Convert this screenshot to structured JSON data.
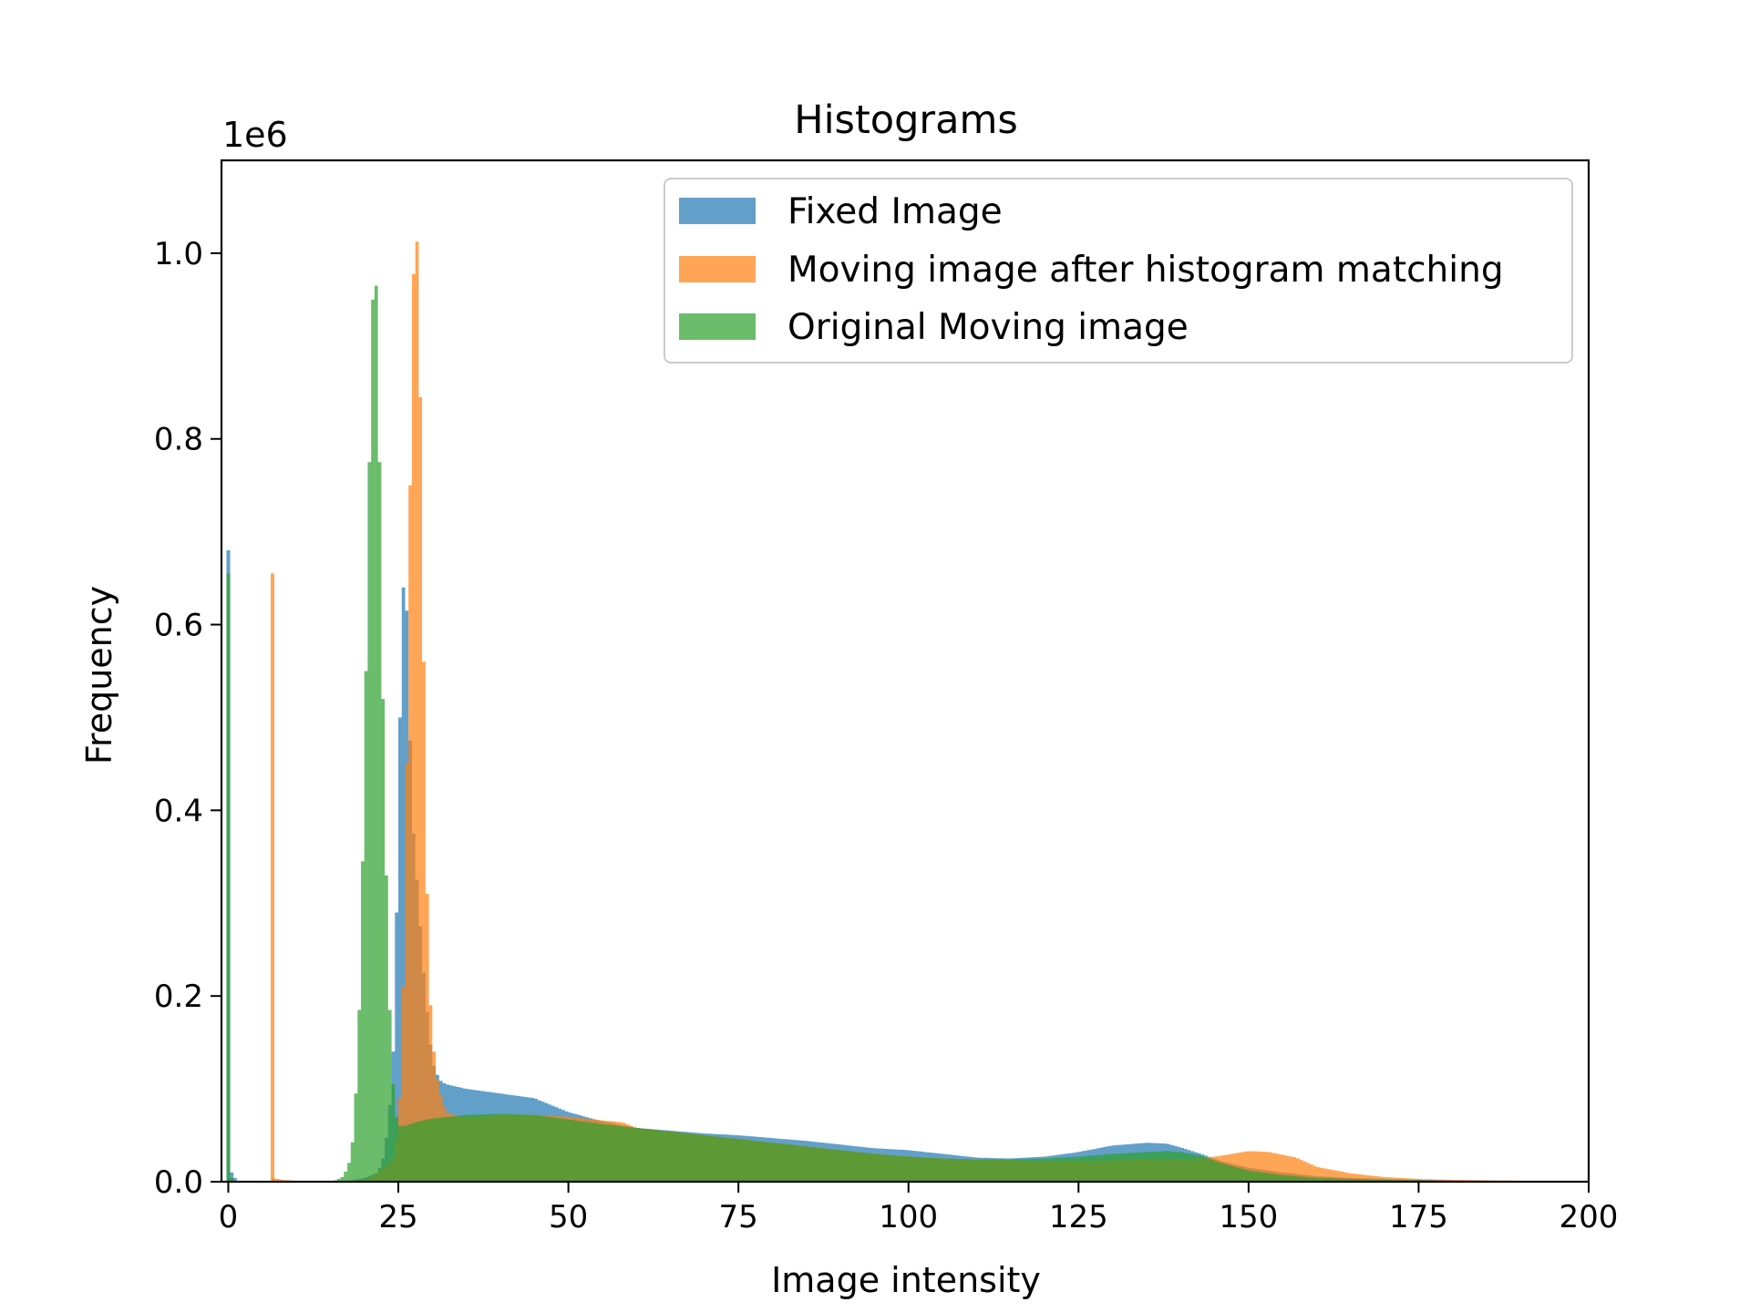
{
  "chart_data": {
    "type": "histogram",
    "title": "Histograms",
    "xlabel": "Image intensity",
    "ylabel": "Frequency",
    "offset_text": "1e6",
    "xlim": [
      -1,
      200
    ],
    "ylim": [
      0,
      1.1
    ],
    "x_ticks": [
      0,
      25,
      50,
      75,
      100,
      125,
      150,
      175,
      200
    ],
    "x_tick_labels": [
      "0",
      "25",
      "50",
      "75",
      "100",
      "125",
      "150",
      "175",
      "200"
    ],
    "y_ticks": [
      0,
      0.2,
      0.4,
      0.6,
      0.8,
      1.0
    ],
    "y_tick_labels": [
      "0.0",
      "0.2",
      "0.4",
      "0.6",
      "0.8",
      "1.0"
    ],
    "bar_opacity": 0.7,
    "grid": false,
    "legend_position": "top-right",
    "series": [
      {
        "name": "Fixed Image",
        "color": "#1f77b4",
        "spikes": [
          [
            0,
            0.68
          ],
          [
            0.5,
            0.01
          ],
          [
            1,
            0.004
          ]
        ],
        "profile": [
          [
            17,
            0
          ],
          [
            20,
            0.004
          ],
          [
            22,
            0.01
          ],
          [
            23,
            0.03
          ],
          [
            24,
            0.1
          ],
          [
            24.5,
            0.18
          ],
          [
            25,
            0.4
          ],
          [
            25.5,
            0.6
          ],
          [
            26,
            0.68
          ],
          [
            26.5,
            0.55
          ],
          [
            27,
            0.4
          ],
          [
            28,
            0.3
          ],
          [
            29,
            0.2
          ],
          [
            30,
            0.13
          ],
          [
            31,
            0.11
          ],
          [
            32,
            0.105
          ],
          [
            35,
            0.1
          ],
          [
            40,
            0.095
          ],
          [
            45,
            0.09
          ],
          [
            50,
            0.075
          ],
          [
            55,
            0.065
          ],
          [
            60,
            0.058
          ],
          [
            65,
            0.055
          ],
          [
            70,
            0.052
          ],
          [
            75,
            0.05
          ],
          [
            80,
            0.047
          ],
          [
            85,
            0.044
          ],
          [
            90,
            0.04
          ],
          [
            95,
            0.036
          ],
          [
            100,
            0.034
          ],
          [
            105,
            0.03
          ],
          [
            110,
            0.026
          ],
          [
            115,
            0.025
          ],
          [
            120,
            0.027
          ],
          [
            125,
            0.032
          ],
          [
            130,
            0.039
          ],
          [
            135,
            0.042
          ],
          [
            138,
            0.041
          ],
          [
            140,
            0.037
          ],
          [
            143,
            0.03
          ],
          [
            146,
            0.022
          ],
          [
            150,
            0.015
          ],
          [
            155,
            0.01
          ],
          [
            160,
            0.006
          ],
          [
            165,
            0.004
          ],
          [
            175,
            0.002
          ],
          [
            185,
            0.001
          ],
          [
            192,
            0.001
          ],
          [
            193,
            0
          ]
        ]
      },
      {
        "name": "Moving image after histogram matching",
        "color": "#ff7f0e",
        "spikes": [
          [
            6.5,
            0.655
          ]
        ],
        "profile": [
          [
            6.5,
            0.004
          ],
          [
            8,
            0.002
          ],
          [
            10,
            0.001
          ],
          [
            20,
            0.001
          ],
          [
            24,
            0.02
          ],
          [
            24.5,
            0.03
          ],
          [
            25,
            0.06
          ],
          [
            25.5,
            0.12
          ],
          [
            26,
            0.3
          ],
          [
            26.5,
            0.6
          ],
          [
            27,
            0.9
          ],
          [
            27.5,
            1.055
          ],
          [
            28,
            0.97
          ],
          [
            28.5,
            0.72
          ],
          [
            29,
            0.4
          ],
          [
            29.5,
            0.22
          ],
          [
            30,
            0.16
          ],
          [
            30.5,
            0.12
          ],
          [
            31,
            0.1
          ],
          [
            32,
            0.075
          ],
          [
            34,
            0.07
          ],
          [
            37,
            0.07
          ],
          [
            40,
            0.072
          ],
          [
            45,
            0.072
          ],
          [
            50,
            0.07
          ],
          [
            55,
            0.066
          ],
          [
            58,
            0.064
          ],
          [
            60,
            0.058
          ],
          [
            65,
            0.054
          ],
          [
            70,
            0.05
          ],
          [
            75,
            0.046
          ],
          [
            80,
            0.042
          ],
          [
            85,
            0.038
          ],
          [
            90,
            0.034
          ],
          [
            95,
            0.03
          ],
          [
            100,
            0.027
          ],
          [
            105,
            0.025
          ],
          [
            110,
            0.024
          ],
          [
            115,
            0.023
          ],
          [
            120,
            0.022
          ],
          [
            125,
            0.022
          ],
          [
            130,
            0.023
          ],
          [
            135,
            0.024
          ],
          [
            140,
            0.024
          ],
          [
            143,
            0.025
          ],
          [
            146,
            0.028
          ],
          [
            150,
            0.033
          ],
          [
            153,
            0.032
          ],
          [
            157,
            0.026
          ],
          [
            160,
            0.016
          ],
          [
            165,
            0.009
          ],
          [
            170,
            0.005
          ],
          [
            175,
            0.003
          ],
          [
            180,
            0.002
          ],
          [
            190,
            0.001
          ],
          [
            191,
            0
          ]
        ]
      },
      {
        "name": "Original Moving image",
        "color": "#2ca02c",
        "spikes": [
          [
            0,
            0.655
          ],
          [
            0.5,
            0.004
          ]
        ],
        "profile": [
          [
            15,
            0
          ],
          [
            16,
            0.002
          ],
          [
            17,
            0.006
          ],
          [
            18,
            0.025
          ],
          [
            18.5,
            0.06
          ],
          [
            19,
            0.13
          ],
          [
            19.5,
            0.24
          ],
          [
            20,
            0.45
          ],
          [
            20.5,
            0.65
          ],
          [
            21,
            0.9
          ],
          [
            21.5,
            1.0
          ],
          [
            22,
            0.93
          ],
          [
            22.5,
            0.62
          ],
          [
            23,
            0.42
          ],
          [
            23.5,
            0.24
          ],
          [
            24,
            0.13
          ],
          [
            24.5,
            0.08
          ],
          [
            25,
            0.06
          ],
          [
            26,
            0.06
          ],
          [
            28,
            0.065
          ],
          [
            30,
            0.068
          ],
          [
            35,
            0.072
          ],
          [
            40,
            0.073
          ],
          [
            45,
            0.072
          ],
          [
            50,
            0.067
          ],
          [
            55,
            0.062
          ],
          [
            60,
            0.058
          ],
          [
            65,
            0.054
          ],
          [
            70,
            0.05
          ],
          [
            75,
            0.046
          ],
          [
            80,
            0.042
          ],
          [
            85,
            0.038
          ],
          [
            90,
            0.034
          ],
          [
            95,
            0.03
          ],
          [
            100,
            0.027
          ],
          [
            105,
            0.025
          ],
          [
            110,
            0.024
          ],
          [
            115,
            0.024
          ],
          [
            120,
            0.025
          ],
          [
            125,
            0.027
          ],
          [
            130,
            0.03
          ],
          [
            135,
            0.032
          ],
          [
            138,
            0.033
          ],
          [
            140,
            0.032
          ],
          [
            143,
            0.028
          ],
          [
            146,
            0.02
          ],
          [
            150,
            0.012
          ],
          [
            155,
            0.007
          ],
          [
            160,
            0.004
          ],
          [
            170,
            0.002
          ],
          [
            180,
            0.001
          ],
          [
            190,
            0.001
          ],
          [
            191,
            0
          ]
        ]
      }
    ]
  }
}
